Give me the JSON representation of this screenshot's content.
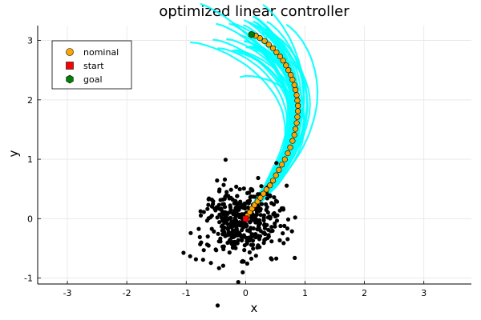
{
  "chart_data": {
    "type": "scatter",
    "title": "optimized linear controller",
    "xlabel": "x",
    "ylabel": "y",
    "xlim": [
      -3.5,
      3.8
    ],
    "ylim": [
      -1.1,
      3.25
    ],
    "xticks": [
      -3,
      -2,
      -1,
      0,
      1,
      2,
      3
    ],
    "yticks": [
      -1,
      0,
      1,
      2,
      3
    ],
    "grid": true,
    "legend_position": "top-left",
    "colors": {
      "nominal": "#ffa500",
      "start": "#ff0000",
      "goal": "#008000",
      "trajectories": "#00ffff",
      "samples": "#000000"
    },
    "legend": [
      {
        "label": "nominal",
        "marker": "circle",
        "color": "#ffa500"
      },
      {
        "label": "start",
        "marker": "square",
        "color": "#ff0000"
      },
      {
        "label": "goal",
        "marker": "hexagon",
        "color": "#008000"
      }
    ],
    "series": [
      {
        "name": "nominal",
        "marker": "circle",
        "x": [
          0.0,
          0.03,
          0.07,
          0.11,
          0.15,
          0.2,
          0.25,
          0.3,
          0.35,
          0.41,
          0.46,
          0.51,
          0.56,
          0.61,
          0.66,
          0.71,
          0.75,
          0.79,
          0.82,
          0.84,
          0.86,
          0.87,
          0.88,
          0.88,
          0.87,
          0.86,
          0.84,
          0.82,
          0.79,
          0.76,
          0.72,
          0.68,
          0.63,
          0.58,
          0.52,
          0.46,
          0.39,
          0.32,
          0.24,
          0.17,
          0.1
        ],
        "y": [
          0.0,
          0.05,
          0.11,
          0.17,
          0.23,
          0.29,
          0.35,
          0.42,
          0.49,
          0.56,
          0.64,
          0.73,
          0.82,
          0.91,
          1.0,
          1.1,
          1.2,
          1.31,
          1.41,
          1.51,
          1.61,
          1.71,
          1.81,
          1.9,
          1.99,
          2.08,
          2.17,
          2.25,
          2.34,
          2.42,
          2.5,
          2.58,
          2.66,
          2.73,
          2.8,
          2.87,
          2.93,
          2.99,
          3.04,
          3.08,
          3.1
        ]
      },
      {
        "name": "start",
        "marker": "square",
        "x": [
          0.0
        ],
        "y": [
          0.0
        ]
      },
      {
        "name": "goal",
        "marker": "hexagon",
        "x": [
          0.1
        ],
        "y": [
          3.1
        ]
      }
    ],
    "trajectory_count": 40,
    "sample_count": 420
  }
}
